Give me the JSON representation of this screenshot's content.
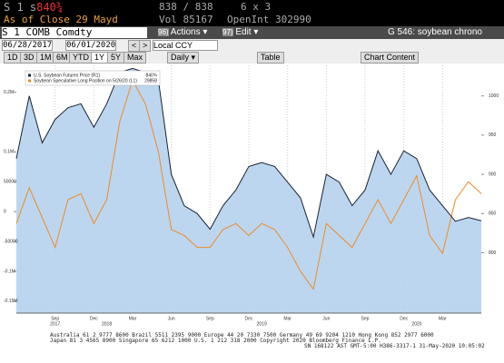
{
  "header": {
    "security": "S 1 s",
    "last": "840¾",
    "bid_ask": "838 / 838",
    "size": "6 x 3",
    "as_of": "As of Close 29 Mayd",
    "volume": "Vol 85167",
    "open_interest": "OpenInt 302990"
  },
  "toolbar": {
    "ticker": "S 1 COMB Comdty",
    "actions_code": "96)",
    "actions": "Actions ▾",
    "edit_code": "97)",
    "edit": "Edit ▾",
    "page": "G 546: soybean chrono"
  },
  "range": {
    "start": "06/28/2017",
    "end": "06/01/2020",
    "prev": "<",
    "next": ">",
    "currency": "Local CCY"
  },
  "periods": [
    "1D",
    "3D",
    "1M",
    "6M",
    "YTD",
    "1Y",
    "5Y",
    "Max"
  ],
  "frequency": "Daily ▾",
  "table": "Table",
  "content": "Chart Content",
  "chart": {
    "type": "line",
    "categories": [
      null,
      null,
      null,
      "Sep",
      null,
      null,
      "Dec",
      null,
      null,
      "Mar",
      null,
      null,
      "Jun",
      null,
      null,
      "Sep",
      null,
      null,
      "Dec",
      null,
      null,
      "Mar",
      null,
      null,
      "Jun",
      null,
      null,
      "Sep",
      null,
      null,
      "Dec",
      null,
      null,
      "Mar",
      null,
      null,
      null
    ],
    "years": [
      "2017",
      "2018",
      "2019",
      "2020"
    ],
    "series": [
      {
        "name": "U.S. Soybean Futures Price (R1)",
        "last_label": "840¾",
        "color": "#1a2233",
        "area_color": "#bcd6ef",
        "axis": "y2",
        "values": [
          920,
          1000,
          940,
          970,
          985,
          990,
          960,
          990,
          1030,
          1035,
          1030,
          1020,
          900,
          860,
          850,
          830,
          860,
          880,
          910,
          915,
          910,
          890,
          870,
          820,
          900,
          890,
          860,
          880,
          930,
          900,
          930,
          920,
          880,
          860,
          840,
          845,
          840.75
        ]
      },
      {
        "name": "Soybean Speculative Long Position on 5/26/20 (L1)",
        "last_label": "29858",
        "color": "#f08a24",
        "values": [
          -20000,
          40000,
          -10000,
          -60000,
          20000,
          30000,
          -20000,
          20000,
          150000,
          220000,
          180000,
          100000,
          -30000,
          -40000,
          -60000,
          -60000,
          -30000,
          -20000,
          -40000,
          -20000,
          -30000,
          -60000,
          -100000,
          -130000,
          -20000,
          -40000,
          -60000,
          -20000,
          20000,
          -20000,
          20000,
          60000,
          -40000,
          -70000,
          20000,
          50000,
          29858
        ]
      }
    ],
    "ylim": [
      -170000,
      245000
    ],
    "yticks": [
      {
        "value": 200000,
        "label": "0.2M"
      },
      {
        "value": 100000,
        "label": "0.1M"
      },
      50000,
      0,
      -50000,
      {
        "value": -100000,
        "label": "-0.1M"
      },
      {
        "value": -150000,
        "label": "-0.15M"
      }
    ],
    "y2lim": [
      723,
      1039
    ],
    "y2ticks": [
      1000,
      950,
      900,
      850,
      800
    ]
  },
  "footer": [
    "Australia 61 2 9777 8600 Brazil 5511 2395 9000 Europe 44 20 7330 7500 Germany 49 69 9204 1210 Hong Kong 852 2977 6000",
    "Japan 81 3 4565 8900    Singapore 65 6212 1000    U.S. 1 212 318 2000    Copyright 2020 Bloomberg Finance L.P.",
    "SN 168122 AST  GMT-5:00 H386-3317-1 31-May-2020 10:05:02"
  ]
}
